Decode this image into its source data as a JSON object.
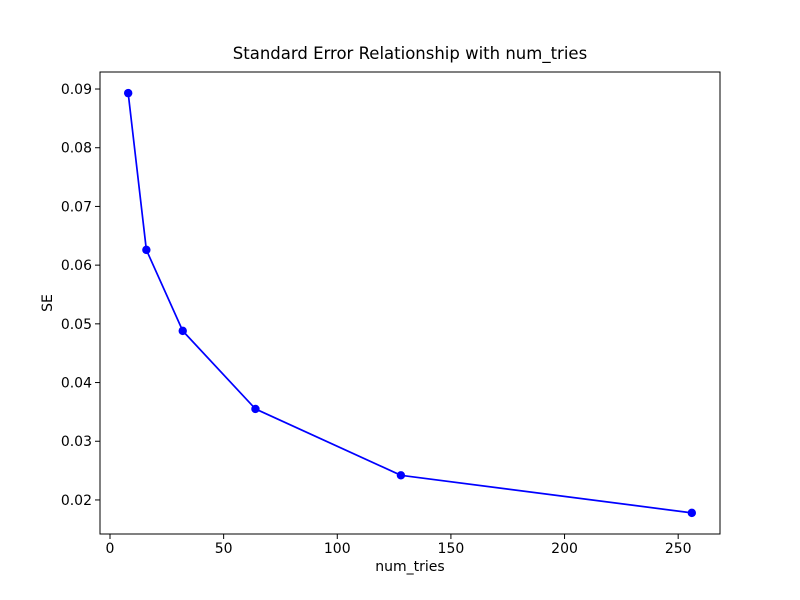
{
  "chart_data": {
    "type": "line",
    "title": "Standard Error Relationship with num_tries",
    "xlabel": "num_tries",
    "ylabel": "SE",
    "series": [
      {
        "name": "SE",
        "x": [
          8,
          16,
          32,
          64,
          128,
          256
        ],
        "y": [
          0.0893,
          0.0626,
          0.0488,
          0.0355,
          0.0242,
          0.0178
        ],
        "color": "#0000ff",
        "marker": "circle"
      }
    ],
    "xlim": [
      -4.4,
      268.4
    ],
    "ylim": [
      0.0142,
      0.0929
    ],
    "xticks": [
      0,
      50,
      100,
      150,
      200,
      250
    ],
    "yticks": [
      0.02,
      0.03,
      0.04,
      0.05,
      0.06,
      0.07,
      0.08,
      0.09
    ],
    "ytick_decimals": 2,
    "grid": false,
    "legend_position": "none",
    "frame_color": "#000000",
    "background_color": "#ffffff"
  }
}
